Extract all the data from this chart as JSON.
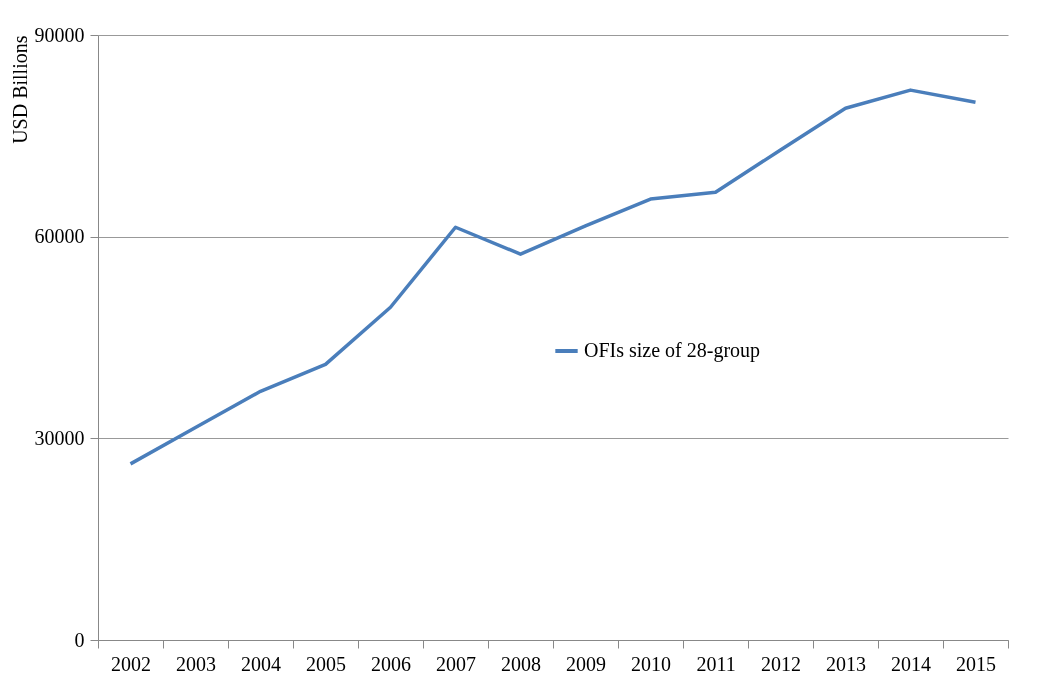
{
  "chart_data": {
    "type": "line",
    "ylabel": "USD Billions",
    "categories": [
      "2002",
      "2003",
      "2004",
      "2005",
      "2006",
      "2007",
      "2008",
      "2009",
      "2010",
      "2011",
      "2012",
      "2013",
      "2014",
      "2015"
    ],
    "series": [
      {
        "name": "OFIs size of 28-group",
        "color": "#4a7ebb",
        "values": [
          26200,
          31600,
          37000,
          41000,
          49500,
          61400,
          57400,
          61600,
          65600,
          66600,
          72900,
          79100,
          81800,
          80000
        ]
      }
    ],
    "ylim": [
      0,
      90000
    ],
    "yticks": [
      0,
      30000,
      60000,
      90000
    ],
    "grid": "y",
    "legend": "center",
    "marker": "none",
    "line_style": "solid"
  }
}
